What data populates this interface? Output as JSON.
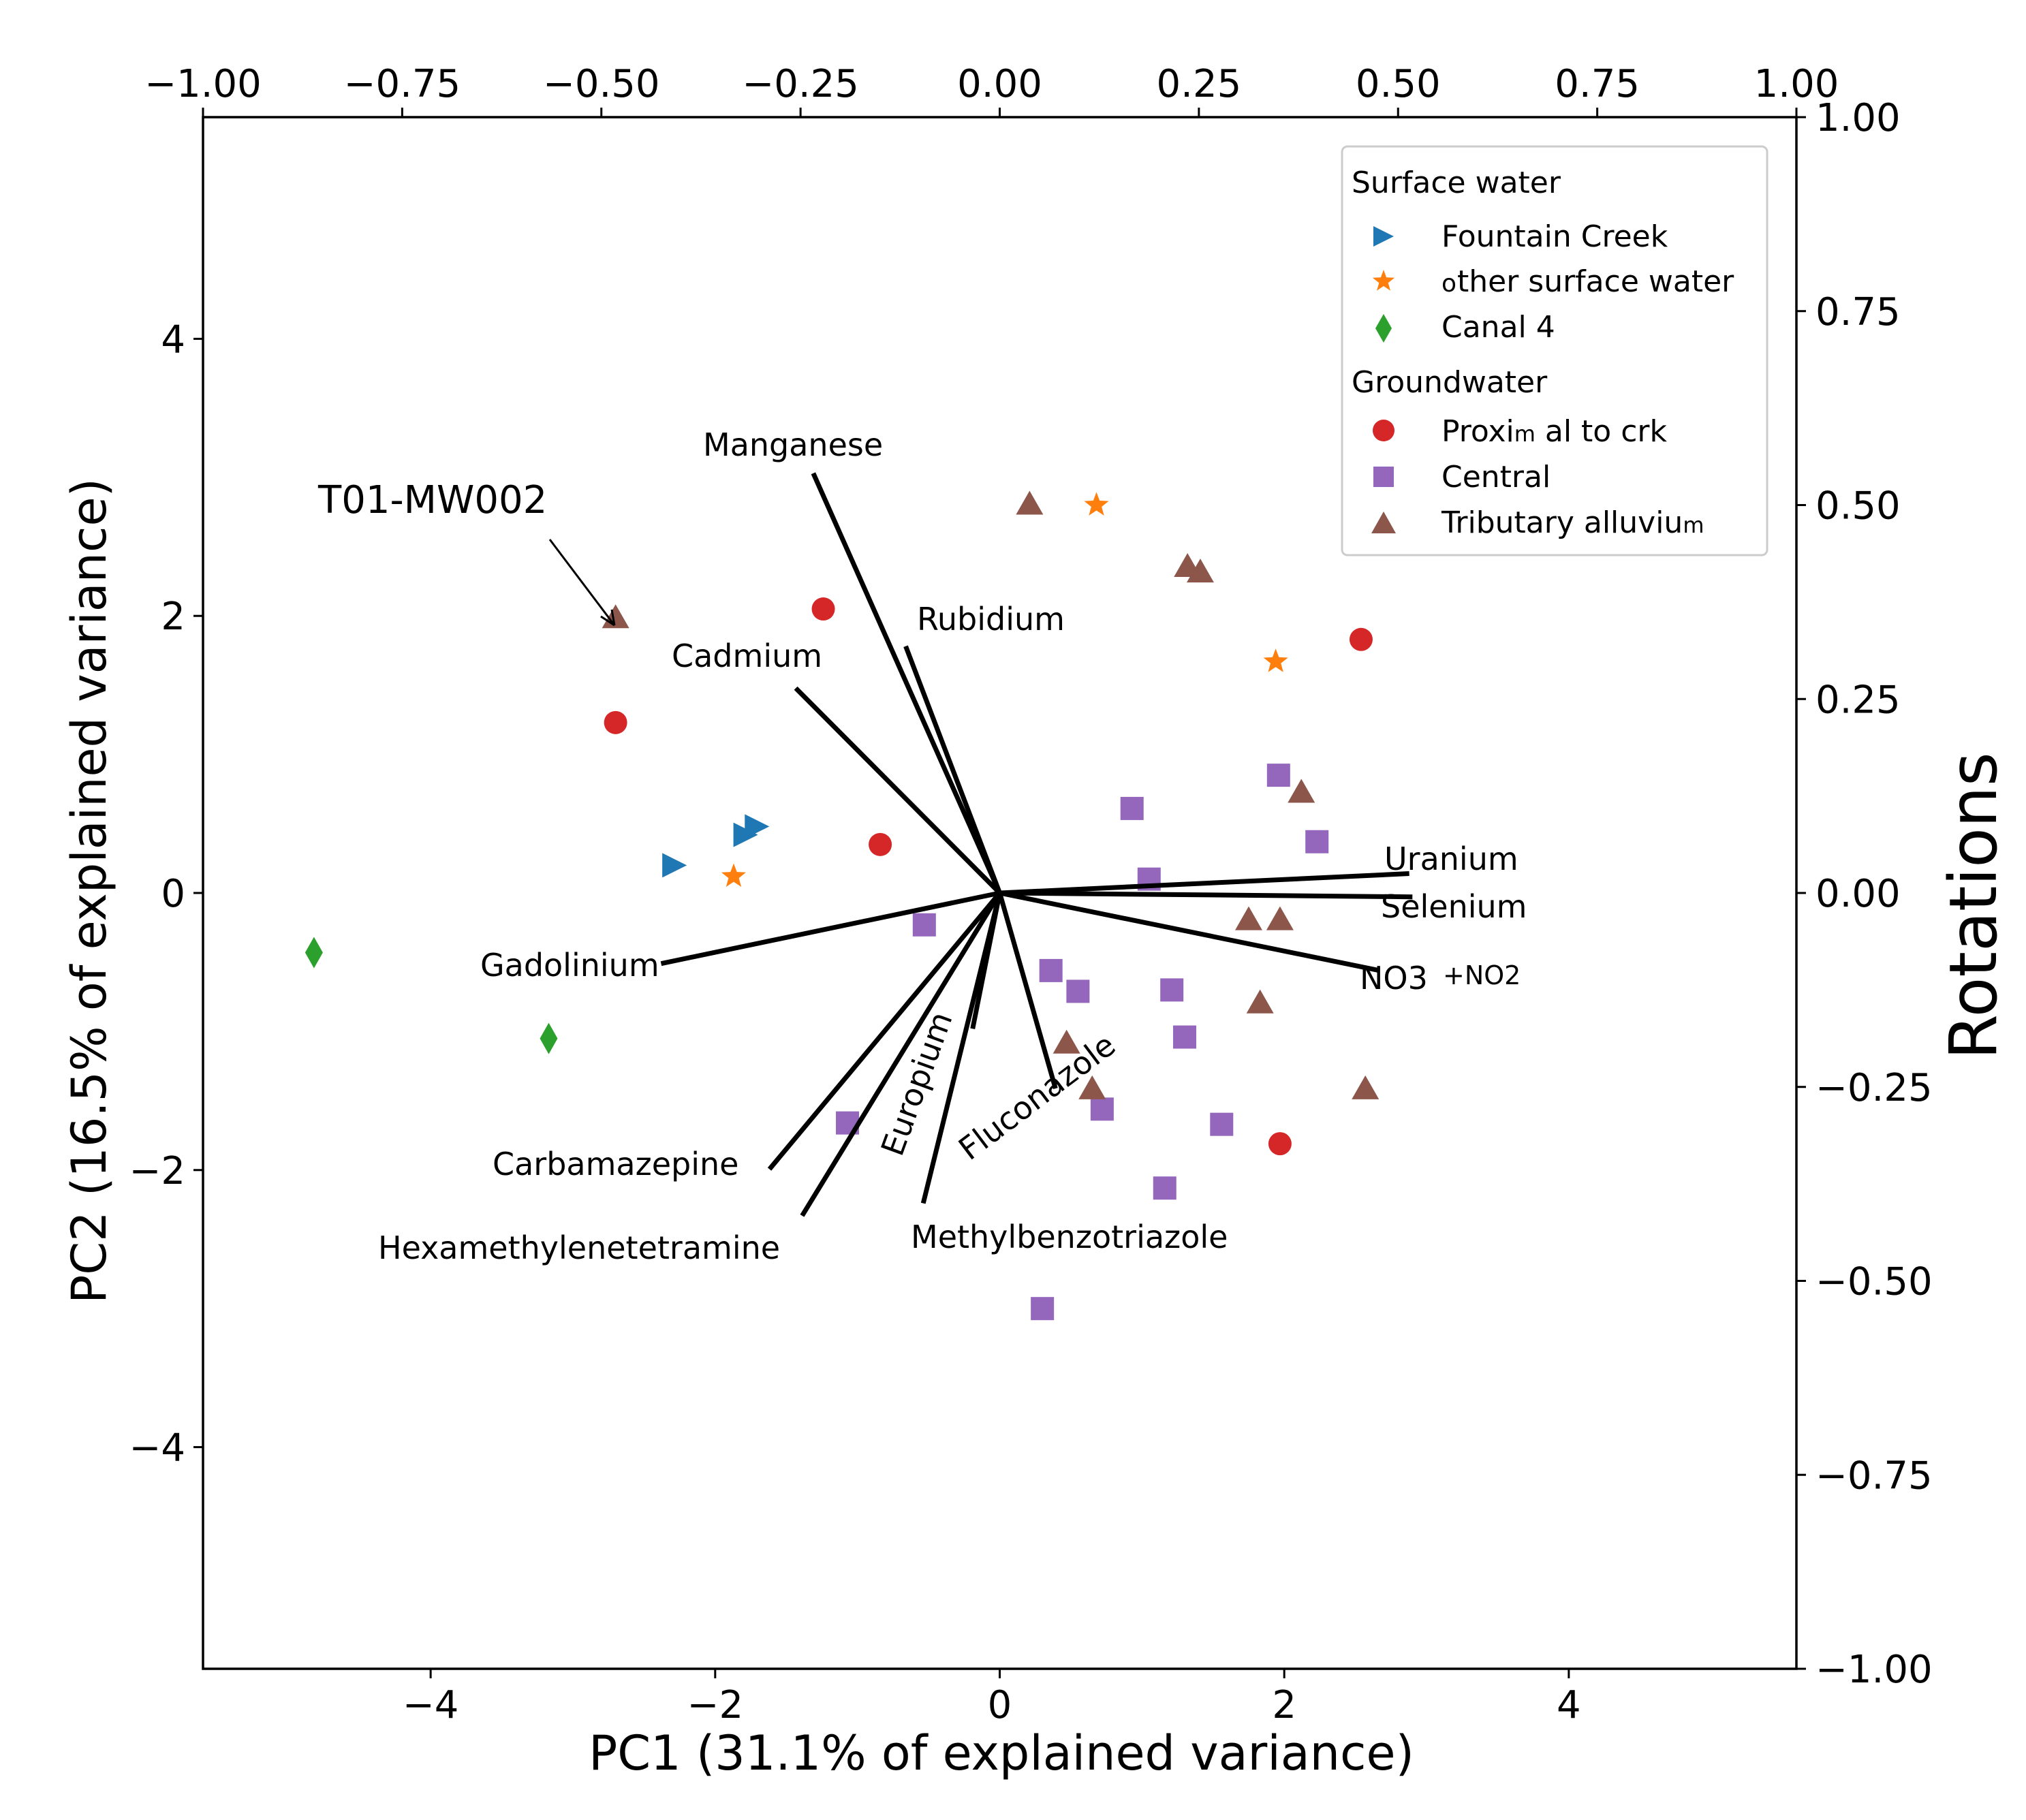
{
  "chart_data": {
    "type": "scatter",
    "subtype": "pca-biplot",
    "xlabel": "PC1 (31.1% of explained variance)",
    "ylabel": "PC2 (16.5% of explained variance)",
    "y2label": "Rotations",
    "xlim": [
      -5.6,
      5.6
    ],
    "ylim": [
      -5.6,
      5.6
    ],
    "x2lim": [
      -1.0,
      1.0
    ],
    "y2lim": [
      -1.0,
      1.0
    ],
    "xticks": [
      -4,
      -2,
      0,
      2,
      4
    ],
    "xtick_labels": [
      "−4",
      "−2",
      "0",
      "2",
      "4"
    ],
    "yticks": [
      -4,
      -2,
      0,
      2,
      4
    ],
    "ytick_labels": [
      "−4",
      "−2",
      "0",
      "2",
      "4"
    ],
    "x2ticks": [
      -1.0,
      -0.75,
      -0.5,
      -0.25,
      0.0,
      0.25,
      0.5,
      0.75,
      1.0
    ],
    "x2tick_labels": [
      "−1.00",
      "−0.75",
      "−0.50",
      "−0.25",
      "0.00",
      "0.25",
      "0.50",
      "0.75",
      "1.00"
    ],
    "y2ticks": [
      1.0,
      0.75,
      0.5,
      0.25,
      0.0,
      -0.25,
      -0.5,
      -0.75,
      -1.0
    ],
    "y2tick_labels": [
      "1.00",
      "0.75",
      "0.50",
      "0.25",
      "0.00",
      "−0.25",
      "−0.50",
      "−0.75",
      "−1.00"
    ],
    "grid": false,
    "legend_position": "top-right",
    "legend_groups": [
      {
        "title": "Surface water",
        "entries": [
          "Fountain Creek",
          "ther surface water",
          "Canal 4"
        ]
      },
      {
        "title": "Groundwater",
        "entries": [
          "Proxim al to crk",
          "Central",
          "Tributary alluvium"
        ]
      }
    ],
    "series": [
      {
        "name": "Fountain Creek",
        "marker": "triangle-right",
        "color": "#1f77b4",
        "points": [
          [
            -2.3,
            0.2
          ],
          [
            -1.8,
            0.42
          ],
          [
            -1.72,
            0.48
          ]
        ]
      },
      {
        "name": "Other surface water",
        "legend_label": "ther surface water",
        "legend_prefix": "o",
        "marker": "star",
        "color": "#ff7f0e",
        "points": [
          [
            -1.87,
            0.12
          ],
          [
            0.68,
            2.8
          ],
          [
            1.94,
            1.67
          ]
        ]
      },
      {
        "name": "Canal 4",
        "marker": "diamond",
        "color": "#2ca02c",
        "points": [
          [
            -4.82,
            -0.43
          ],
          [
            -3.17,
            -1.05
          ]
        ]
      },
      {
        "name": "Proximal to crk",
        "legend_label": "Proxim al to crk",
        "marker": "circle",
        "color": "#d62728",
        "points": [
          [
            -2.7,
            1.23
          ],
          [
            -1.24,
            2.05
          ],
          [
            -0.84,
            0.35
          ],
          [
            2.54,
            1.83
          ],
          [
            1.97,
            -1.81
          ]
        ]
      },
      {
        "name": "Central",
        "marker": "square",
        "color": "#9467bd",
        "points": [
          [
            -0.53,
            -0.23
          ],
          [
            -1.07,
            -1.66
          ],
          [
            0.36,
            -0.56
          ],
          [
            0.55,
            -0.71
          ],
          [
            0.93,
            0.61
          ],
          [
            1.05,
            0.1
          ],
          [
            1.21,
            -0.7
          ],
          [
            1.3,
            -1.04
          ],
          [
            0.72,
            -1.56
          ],
          [
            1.56,
            -1.67
          ],
          [
            1.16,
            -2.13
          ],
          [
            0.3,
            -3.0
          ],
          [
            1.96,
            0.85
          ],
          [
            2.23,
            0.37
          ]
        ]
      },
      {
        "name": "Tributary alluvium",
        "marker": "triangle-up",
        "color": "#8c564b",
        "points": [
          [
            -2.7,
            1.98
          ],
          [
            0.21,
            2.8
          ],
          [
            1.32,
            2.35
          ],
          [
            1.41,
            2.31
          ],
          [
            2.12,
            0.72
          ],
          [
            1.75,
            -0.2
          ],
          [
            1.97,
            -0.2
          ],
          [
            1.83,
            -0.8
          ],
          [
            0.47,
            -1.09
          ],
          [
            0.65,
            -1.42
          ],
          [
            2.57,
            -1.42
          ]
        ]
      }
    ],
    "loadings": [
      {
        "name": "Manganese",
        "x": -0.234,
        "y": 0.541
      },
      {
        "name": "Rubidium",
        "x": -0.118,
        "y": 0.318
      },
      {
        "name": "Cadmium",
        "x": -0.256,
        "y": 0.264
      },
      {
        "name": "Uranium",
        "x": 0.514,
        "y": 0.025
      },
      {
        "name": "Selenium",
        "x": 0.518,
        "y": -0.005
      },
      {
        "name": "NO3+NO2",
        "x": 0.477,
        "y": -0.1
      },
      {
        "name": "Gadolinium",
        "x": -0.425,
        "y": -0.091
      },
      {
        "name": "Carbamazepine",
        "x": -0.289,
        "y": -0.356
      },
      {
        "name": "Hexamethylenetetramine",
        "x": -0.248,
        "y": -0.416
      },
      {
        "name": "Europium",
        "x": -0.034,
        "y": -0.175
      },
      {
        "name": "Fluconazole",
        "x": 0.07,
        "y": -0.252
      },
      {
        "name": "Methylbenzotriazole",
        "x": -0.096,
        "y": -0.4
      }
    ],
    "vector_labels": {
      "Manganese": "Manganese",
      "Rubidium": "Rubidium",
      "Cadmium": "Cadmium",
      "Uranium": "Uranium",
      "Selenium": "Selenium",
      "NO3": "NO3",
      "NO2_part": "+NO2",
      "Gadolinium": "Gadolinium",
      "Carbamazepine": "Carbamazepine",
      "Hexamethylenetetramine": "Hexamethylenetetramine",
      "Europium": "Europium",
      "Fluconazole": "Fluconazole",
      "Methylbenzotriazole": "Methylbenzotriazole"
    },
    "annotation": {
      "text": "T01-MW002",
      "target": [
        -2.7,
        1.98
      ]
    }
  },
  "legend": {
    "group1_title": "Surface water",
    "fountain_creek": "Fountain Creek",
    "other_prefix": "o",
    "other_surface_water": "ther surface water",
    "canal4": "Canal 4",
    "group2_title": "Groundwater",
    "proximal_a": "Proxi",
    "proximal_m": "m",
    "proximal_b": " al to crk",
    "central": "Central",
    "tributary_a": "Tributary alluviu",
    "tributary_m": "m"
  },
  "colors": {
    "fountain_creek": "#1f77b4",
    "other_surface_water": "#ff7f0e",
    "canal4": "#2ca02c",
    "proximal": "#d62728",
    "central": "#9467bd",
    "tributary": "#8c564b"
  }
}
